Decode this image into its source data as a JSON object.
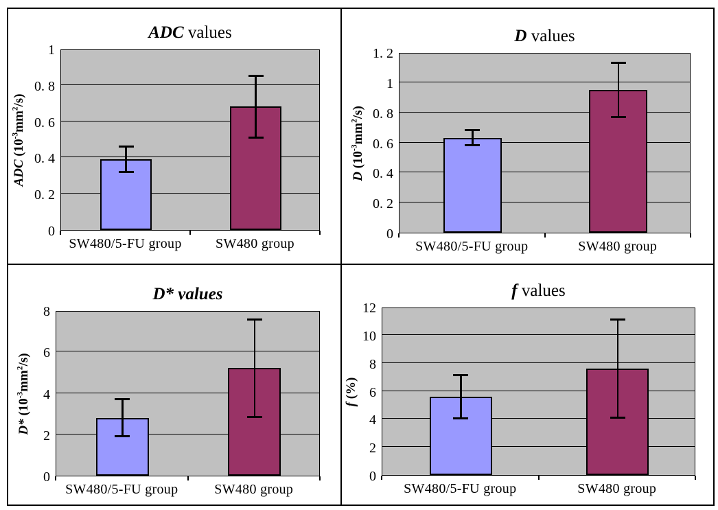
{
  "page": {
    "background": "#FFFFFF"
  },
  "colors": {
    "plot_bg": "#C0C0C0",
    "bar_group1": "#9999FF",
    "bar_group2": "#993366",
    "bar_border": "#000000",
    "grid_line": "#000000",
    "frame_border": "#000000",
    "error_bar": "#000000"
  },
  "categories": [
    "SW480/5-FU group",
    "SW480 group"
  ],
  "chart_data": [
    {
      "type": "bar",
      "title": "ADC values",
      "title_segments": [
        {
          "t": "ADC",
          "style": "em"
        },
        {
          "t": " values",
          "style": ""
        }
      ],
      "ylabel": "ADC (10-3mm2/s)",
      "ylabel_segments": [
        {
          "t": "ADC ",
          "style": "em"
        },
        {
          "t": "(10",
          "style": ""
        },
        {
          "t": "-3",
          "style": "sup"
        },
        {
          "t": "mm",
          "style": ""
        },
        {
          "t": "2",
          "style": "sup"
        },
        {
          "t": "/s)",
          "style": ""
        }
      ],
      "categories": [
        "SW480/5-FU group",
        "SW480 group"
      ],
      "series": [
        {
          "name": "mean",
          "values": [
            0.39,
            0.68
          ],
          "errors": [
            0.07,
            0.17
          ]
        }
      ],
      "bar_colors": [
        "#9999FF",
        "#993366"
      ],
      "ylim": [
        0,
        1
      ],
      "yticks": [
        {
          "value": 0,
          "label": "0"
        },
        {
          "value": 0.2,
          "label": "0. 2"
        },
        {
          "value": 0.4,
          "label": "0. 4"
        },
        {
          "value": 0.6,
          "label": "0. 6"
        },
        {
          "value": 0.8,
          "label": "0. 8"
        },
        {
          "value": 1,
          "label": "1"
        }
      ],
      "grid": true,
      "legend": "none"
    },
    {
      "type": "bar",
      "title": "D values",
      "title_segments": [
        {
          "t": "D",
          "style": "em"
        },
        {
          "t": " values",
          "style": ""
        }
      ],
      "ylabel": "D (10-3mm2/s)",
      "ylabel_segments": [
        {
          "t": "D ",
          "style": "em"
        },
        {
          "t": "(10",
          "style": ""
        },
        {
          "t": "-3",
          "style": "sup"
        },
        {
          "t": "mm",
          "style": ""
        },
        {
          "t": "2",
          "style": "sup"
        },
        {
          "t": "/s)",
          "style": ""
        }
      ],
      "categories": [
        "SW480/5-FU group",
        "SW480 group"
      ],
      "series": [
        {
          "name": "mean",
          "values": [
            0.63,
            0.95
          ],
          "errors": [
            0.05,
            0.18
          ]
        }
      ],
      "bar_colors": [
        "#9999FF",
        "#993366"
      ],
      "ylim": [
        0,
        1.2
      ],
      "yticks": [
        {
          "value": 0,
          "label": "0"
        },
        {
          "value": 0.2,
          "label": "0. 2"
        },
        {
          "value": 0.4,
          "label": "0. 4"
        },
        {
          "value": 0.6,
          "label": "0. 6"
        },
        {
          "value": 0.8,
          "label": "0. 8"
        },
        {
          "value": 1,
          "label": "1"
        },
        {
          "value": 1.2,
          "label": "1. 2"
        }
      ],
      "grid": true,
      "legend": "none"
    },
    {
      "type": "bar",
      "title": "D* values",
      "title_segments": [
        {
          "t": "D* values",
          "style": "em"
        }
      ],
      "ylabel": "D* (10-3mm2/s)",
      "ylabel_segments": [
        {
          "t": "D* ",
          "style": "em"
        },
        {
          "t": "(10",
          "style": ""
        },
        {
          "t": "-3",
          "style": "sup"
        },
        {
          "t": "mm",
          "style": ""
        },
        {
          "t": "2",
          "style": "sup"
        },
        {
          "t": "/s)",
          "style": ""
        }
      ],
      "categories": [
        "SW480/5-FU group",
        "SW480 group"
      ],
      "series": [
        {
          "name": "mean",
          "values": [
            2.8,
            5.2
          ],
          "errors": [
            0.9,
            2.35
          ]
        }
      ],
      "bar_colors": [
        "#9999FF",
        "#993366"
      ],
      "ylim": [
        0,
        8
      ],
      "yticks": [
        {
          "value": 0,
          "label": "0"
        },
        {
          "value": 2,
          "label": "2"
        },
        {
          "value": 4,
          "label": "4"
        },
        {
          "value": 6,
          "label": "6"
        },
        {
          "value": 8,
          "label": "8"
        }
      ],
      "grid": true,
      "legend": "none"
    },
    {
      "type": "bar",
      "title": "f values",
      "title_segments": [
        {
          "t": "f",
          "style": "em"
        },
        {
          "t": " values",
          "style": ""
        }
      ],
      "ylabel": "f (%)",
      "ylabel_segments": [
        {
          "t": "f ",
          "style": "em"
        },
        {
          "t": "(%)",
          "style": ""
        }
      ],
      "categories": [
        "SW480/5-FU group",
        "SW480 group"
      ],
      "series": [
        {
          "name": "mean",
          "values": [
            5.6,
            7.6
          ],
          "errors": [
            1.55,
            3.5
          ]
        }
      ],
      "bar_colors": [
        "#9999FF",
        "#993366"
      ],
      "ylim": [
        0,
        12
      ],
      "yticks": [
        {
          "value": 0,
          "label": "0"
        },
        {
          "value": 2,
          "label": "2"
        },
        {
          "value": 4,
          "label": "4"
        },
        {
          "value": 6,
          "label": "6"
        },
        {
          "value": 8,
          "label": "8"
        },
        {
          "value": 10,
          "label": "10"
        },
        {
          "value": 12,
          "label": "12"
        }
      ],
      "grid": true,
      "legend": "none"
    }
  ]
}
